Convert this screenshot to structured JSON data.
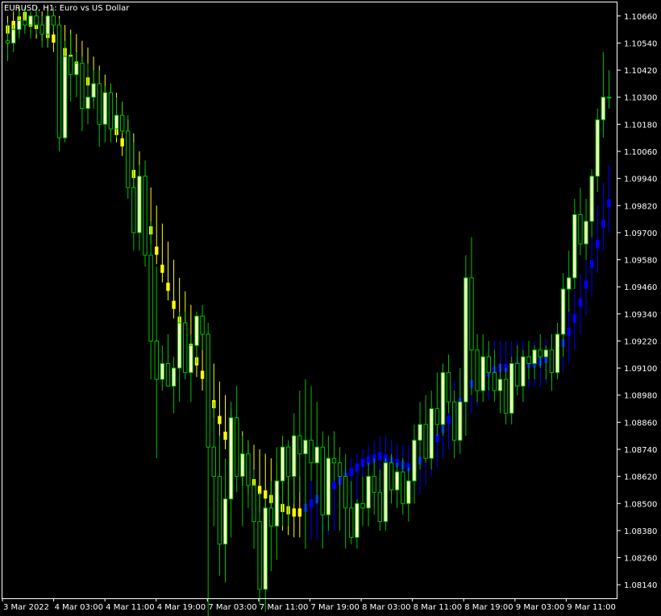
{
  "header": {
    "symbol": "EURUSD",
    "timeframe": "H1",
    "description": "Euro vs US Dollar",
    "title": "EURUSD, H1:  Euro vs US Dollar"
  },
  "colors": {
    "background": "#000000",
    "frame": "#ffffff",
    "wick_green": "#00c000",
    "bull_body": "#ffffc0",
    "yellow": "#ffff00",
    "blue": "#0000ff",
    "text": "#ffffff"
  },
  "chart_data": {
    "type": "candlestick",
    "title": "EURUSD, H1:  Euro vs US Dollar",
    "ylim": [
      1.0808,
      1.1072
    ],
    "y_ticks": [
      "1.10660",
      "1.10540",
      "1.10420",
      "1.10300",
      "1.10180",
      "1.10060",
      "1.09940",
      "1.09820",
      "1.09700",
      "1.09580",
      "1.09460",
      "1.09340",
      "1.09220",
      "1.09100",
      "1.08980",
      "1.08860",
      "1.08740",
      "1.08620",
      "1.08500",
      "1.08380",
      "1.08260",
      "1.08140"
    ],
    "x_ticks": [
      "3 Mar 2022",
      "4 Mar 03:00",
      "4 Mar 11:00",
      "4 Mar 19:00",
      "7 Mar 03:00",
      "7 Mar 11:00",
      "7 Mar 19:00",
      "8 Mar 03:00",
      "8 Mar 11:00",
      "8 Mar 19:00",
      "9 Mar 03:00",
      "9 Mar 11:00"
    ],
    "price_series": [
      [
        1.1055,
        1.1063,
        1.1046,
        1.1054
      ],
      [
        1.1054,
        1.1062,
        1.105,
        1.106
      ],
      [
        1.106,
        1.1068,
        1.1056,
        1.1064
      ],
      [
        1.1064,
        1.107,
        1.1058,
        1.1062
      ],
      [
        1.1062,
        1.1068,
        1.1056,
        1.1066
      ],
      [
        1.1066,
        1.107,
        1.1058,
        1.1062
      ],
      [
        1.1062,
        1.1066,
        1.1052,
        1.1058
      ],
      [
        1.1058,
        1.1068,
        1.1052,
        1.1066
      ],
      [
        1.1066,
        1.107,
        1.1059,
        1.1062
      ],
      [
        1.1062,
        1.1065,
        1.1006,
        1.1012
      ],
      [
        1.1012,
        1.1055,
        1.101,
        1.1048
      ],
      [
        1.1048,
        1.1058,
        1.1028,
        1.104
      ],
      [
        1.104,
        1.105,
        1.103,
        1.1045
      ],
      [
        1.1045,
        1.1048,
        1.1015,
        1.1025
      ],
      [
        1.1025,
        1.1045,
        1.1018,
        1.103
      ],
      [
        1.103,
        1.1042,
        1.1025,
        1.1036
      ],
      [
        1.1036,
        1.1042,
        1.1008,
        1.1018
      ],
      [
        1.1018,
        1.1035,
        1.101,
        1.1032
      ],
      [
        1.1032,
        1.1036,
        1.101,
        1.1016
      ],
      [
        1.1016,
        1.103,
        1.1012,
        1.1022
      ],
      [
        1.1022,
        1.1028,
        1.1014,
        1.1015
      ],
      [
        1.1015,
        1.1022,
        1.0985,
        1.099
      ],
      [
        1.099,
        1.101,
        1.0962,
        1.097
      ],
      [
        1.097,
        1.1,
        1.0962,
        1.0995
      ],
      [
        1.0995,
        1.1002,
        1.0955,
        1.096
      ],
      [
        1.096,
        1.0975,
        1.0905,
        1.0922
      ],
      [
        1.0922,
        1.0955,
        1.087,
        1.0905
      ],
      [
        1.0905,
        1.092,
        1.09,
        1.0912
      ],
      [
        1.0912,
        1.0925,
        1.0902,
        1.0902
      ],
      [
        1.0902,
        1.0915,
        1.089,
        1.091
      ],
      [
        1.091,
        1.0935,
        1.0895,
        1.093
      ],
      [
        1.093,
        1.0935,
        1.0905,
        1.0908
      ],
      [
        1.0908,
        1.0925,
        1.0895,
        1.092
      ],
      [
        1.092,
        1.0935,
        1.0912,
        1.0933
      ],
      [
        1.0933,
        1.0938,
        1.0918,
        1.0925
      ],
      [
        1.0925,
        1.093,
        1.079,
        1.0875
      ],
      [
        1.0875,
        1.0895,
        1.084,
        1.0862
      ],
      [
        1.0862,
        1.088,
        1.0818,
        1.0832
      ],
      [
        1.0832,
        1.087,
        1.0815,
        1.0852
      ],
      [
        1.0852,
        1.0895,
        1.0835,
        1.0888
      ],
      [
        1.0888,
        1.0902,
        1.0855,
        1.0862
      ],
      [
        1.0862,
        1.088,
        1.084,
        1.0872
      ],
      [
        1.0872,
        1.0878,
        1.0848,
        1.0858
      ],
      [
        1.0858,
        1.0865,
        1.083,
        1.0842
      ],
      [
        1.0842,
        1.0855,
        1.0805,
        1.0812
      ],
      [
        1.0812,
        1.0852,
        1.0802,
        1.0848
      ],
      [
        1.0848,
        1.086,
        1.082,
        1.084
      ],
      [
        1.084,
        1.0875,
        1.0825,
        1.086
      ],
      [
        1.086,
        1.088,
        1.084,
        1.0875
      ],
      [
        1.0875,
        1.0878,
        1.084,
        1.0862
      ],
      [
        1.0862,
        1.089,
        1.085,
        1.088
      ],
      [
        1.088,
        1.09,
        1.0855,
        1.0872
      ],
      [
        1.0872,
        1.0905,
        1.083,
        1.0878
      ],
      [
        1.0878,
        1.0902,
        1.086,
        1.0868
      ],
      [
        1.0868,
        1.0895,
        1.085,
        1.0875
      ],
      [
        1.0875,
        1.0882,
        1.083,
        1.0845
      ],
      [
        1.0845,
        1.088,
        1.0838,
        1.087
      ],
      [
        1.087,
        1.0882,
        1.086,
        1.0868
      ],
      [
        1.0868,
        1.0875,
        1.0838,
        1.0862
      ],
      [
        1.0862,
        1.0872,
        1.083,
        1.0848
      ],
      [
        1.0848,
        1.086,
        1.0832,
        1.0835
      ],
      [
        1.0835,
        1.0852,
        1.083,
        1.085
      ],
      [
        1.085,
        1.0862,
        1.084,
        1.0848
      ],
      [
        1.0848,
        1.0868,
        1.084,
        1.0862
      ],
      [
        1.0862,
        1.087,
        1.0845,
        1.0855
      ],
      [
        1.0855,
        1.0865,
        1.0838,
        1.0842
      ],
      [
        1.0842,
        1.087,
        1.0838,
        1.0868
      ],
      [
        1.0868,
        1.0872,
        1.085,
        1.0856
      ],
      [
        1.0856,
        1.0868,
        1.0848,
        1.0864
      ],
      [
        1.0864,
        1.087,
        1.0845,
        1.085
      ],
      [
        1.085,
        1.0866,
        1.0842,
        1.086
      ],
      [
        1.086,
        1.0885,
        1.085,
        1.0878
      ],
      [
        1.0878,
        1.0895,
        1.0865,
        1.0885
      ],
      [
        1.0885,
        1.0898,
        1.0868,
        1.087
      ],
      [
        1.087,
        1.09,
        1.0865,
        1.0892
      ],
      [
        1.0892,
        1.0908,
        1.088,
        1.0885
      ],
      [
        1.0885,
        1.0912,
        1.088,
        1.0908
      ],
      [
        1.0908,
        1.0916,
        1.089,
        1.0895
      ],
      [
        1.0895,
        1.09,
        1.087,
        1.0878
      ],
      [
        1.0878,
        1.091,
        1.0872,
        1.0895
      ],
      [
        1.0895,
        1.096,
        1.088,
        1.095
      ],
      [
        1.095,
        1.0968,
        1.0898,
        1.0918
      ],
      [
        1.0918,
        1.0925,
        1.0895,
        1.09
      ],
      [
        1.09,
        1.0925,
        1.0895,
        1.0915
      ],
      [
        1.0915,
        1.0922,
        1.09,
        1.0908
      ],
      [
        1.0908,
        1.0918,
        1.0895,
        1.09
      ],
      [
        1.09,
        1.0912,
        1.089,
        1.0905
      ],
      [
        1.0905,
        1.091,
        1.0885,
        1.089
      ],
      [
        1.089,
        1.0915,
        1.0885,
        1.0912
      ],
      [
        1.0912,
        1.092,
        1.0898,
        1.0902
      ],
      [
        1.0902,
        1.0918,
        1.0895,
        1.0915
      ],
      [
        1.0915,
        1.0922,
        1.0905,
        1.0912
      ],
      [
        1.0912,
        1.092,
        1.0905,
        1.0918
      ],
      [
        1.0918,
        1.0925,
        1.091,
        1.0915
      ],
      [
        1.0915,
        1.092,
        1.0905,
        1.0918
      ],
      [
        1.0918,
        1.0925,
        1.09,
        1.0908
      ],
      [
        1.0908,
        1.093,
        1.0905,
        1.0925
      ],
      [
        1.0925,
        1.0952,
        1.0915,
        1.0945
      ],
      [
        1.0945,
        1.0962,
        1.0935,
        1.095
      ],
      [
        1.095,
        1.0985,
        1.0945,
        1.0978
      ],
      [
        1.0978,
        1.099,
        1.096,
        1.0965
      ],
      [
        1.0965,
        1.0985,
        1.0958,
        1.0975
      ],
      [
        1.0975,
        1.0998,
        1.0968,
        1.0995
      ],
      [
        1.0995,
        1.1025,
        1.0988,
        1.102
      ],
      [
        1.102,
        1.105,
        1.1012,
        1.103
      ],
      [
        1.103,
        1.1042,
        1.1025,
        1.103
      ]
    ],
    "yellow_series_until_index": 52,
    "blue_series_from_index": 52,
    "indicator_series": [
      [
        1.1052,
        1.1066,
        1.106
      ],
      [
        1.1054,
        1.1068,
        1.1062
      ],
      [
        1.1058,
        1.107,
        1.1064
      ],
      [
        1.106,
        1.107,
        1.1066
      ],
      [
        1.1058,
        1.1068,
        1.1063
      ],
      [
        1.1056,
        1.1068,
        1.1062
      ],
      [
        1.1055,
        1.1068,
        1.106
      ],
      [
        1.1052,
        1.107,
        1.1058
      ],
      [
        1.105,
        1.1068,
        1.1056
      ],
      [
        1.1048,
        1.1066,
        1.1052
      ],
      [
        1.1045,
        1.1062,
        1.105
      ],
      [
        1.1042,
        1.106,
        1.1047
      ],
      [
        1.104,
        1.1058,
        1.1044
      ],
      [
        1.1035,
        1.1055,
        1.104
      ],
      [
        1.1032,
        1.1052,
        1.1037
      ],
      [
        1.1028,
        1.1048,
        1.1033
      ],
      [
        1.1024,
        1.1044,
        1.1029
      ],
      [
        1.102,
        1.104,
        1.1025
      ],
      [
        1.1015,
        1.1036,
        1.102
      ],
      [
        1.101,
        1.1032,
        1.1015
      ],
      [
        1.1004,
        1.1028,
        1.101
      ],
      [
        1.0998,
        1.102,
        1.1003
      ],
      [
        1.099,
        1.1014,
        1.0996
      ],
      [
        1.0982,
        1.1006,
        1.0988
      ],
      [
        1.0974,
        1.0998,
        1.098
      ],
      [
        1.0965,
        1.099,
        1.0971
      ],
      [
        1.0956,
        1.0982,
        1.0962
      ],
      [
        1.0948,
        1.0974,
        1.0954
      ],
      [
        1.094,
        1.0966,
        1.0946
      ],
      [
        1.0932,
        1.0958,
        1.0938
      ],
      [
        1.0925,
        1.095,
        1.0931
      ],
      [
        1.0918,
        1.0944,
        1.0925
      ],
      [
        1.0912,
        1.0938,
        1.0919
      ],
      [
        1.0906,
        1.0932,
        1.0913
      ],
      [
        1.09,
        1.0926,
        1.0907
      ],
      [
        1.0894,
        1.092,
        1.09
      ],
      [
        1.0888,
        1.0912,
        1.0894
      ],
      [
        1.088,
        1.0904,
        1.0887
      ],
      [
        1.0874,
        1.0898,
        1.088
      ],
      [
        1.0868,
        1.0892,
        1.0874
      ],
      [
        1.0862,
        1.0886,
        1.0869
      ],
      [
        1.0858,
        1.0882,
        1.0865
      ],
      [
        1.0854,
        1.0878,
        1.0862
      ],
      [
        1.085,
        1.0876,
        1.0859
      ],
      [
        1.0846,
        1.0874,
        1.0856
      ],
      [
        1.0844,
        1.0872,
        1.0854
      ],
      [
        1.0842,
        1.087,
        1.0852
      ],
      [
        1.084,
        1.0868,
        1.085
      ],
      [
        1.0838,
        1.0866,
        1.0848
      ],
      [
        1.0836,
        1.0864,
        1.0847
      ],
      [
        1.0835,
        1.0862,
        1.0846
      ],
      [
        1.0835,
        1.0862,
        1.0846
      ],
      [
        1.0834,
        1.0862,
        1.0848
      ],
      [
        1.0834,
        1.086,
        1.085
      ],
      [
        1.0834,
        1.086,
        1.0852
      ],
      [
        1.0835,
        1.086,
        1.0854
      ],
      [
        1.0836,
        1.0862,
        1.0856
      ],
      [
        1.0838,
        1.0864,
        1.0858
      ],
      [
        1.084,
        1.0866,
        1.086
      ],
      [
        1.0842,
        1.0868,
        1.0862
      ],
      [
        1.0843,
        1.087,
        1.0864
      ],
      [
        1.0845,
        1.0872,
        1.0866
      ],
      [
        1.0846,
        1.0874,
        1.0868
      ],
      [
        1.0848,
        1.0876,
        1.0869
      ],
      [
        1.0849,
        1.0878,
        1.087
      ],
      [
        1.085,
        1.088,
        1.0871
      ],
      [
        1.085,
        1.088,
        1.087
      ],
      [
        1.085,
        1.0878,
        1.0869
      ],
      [
        1.085,
        1.0876,
        1.0868
      ],
      [
        1.085,
        1.0876,
        1.0867
      ],
      [
        1.085,
        1.0876,
        1.0866
      ],
      [
        1.0852,
        1.0878,
        1.0867
      ],
      [
        1.0854,
        1.088,
        1.0869
      ],
      [
        1.0858,
        1.0884,
        1.0872
      ],
      [
        1.0862,
        1.0888,
        1.0875
      ],
      [
        1.0866,
        1.0892,
        1.0879
      ],
      [
        1.087,
        1.0896,
        1.0883
      ],
      [
        1.0874,
        1.09,
        1.0887
      ],
      [
        1.0878,
        1.0904,
        1.0891
      ],
      [
        1.0882,
        1.0908,
        1.0895
      ],
      [
        1.0886,
        1.0912,
        1.0899
      ],
      [
        1.089,
        1.0916,
        1.0903
      ],
      [
        1.0893,
        1.0918,
        1.0905
      ],
      [
        1.0895,
        1.092,
        1.0907
      ],
      [
        1.0896,
        1.0921,
        1.0908
      ],
      [
        1.0897,
        1.0922,
        1.0909
      ],
      [
        1.0898,
        1.0922,
        1.091
      ],
      [
        1.0899,
        1.0922,
        1.091
      ],
      [
        1.09,
        1.0922,
        1.091
      ],
      [
        1.09,
        1.0922,
        1.0911
      ],
      [
        1.09,
        1.0922,
        1.0911
      ],
      [
        1.0901,
        1.0922,
        1.0912
      ],
      [
        1.0902,
        1.0922,
        1.0912
      ],
      [
        1.0902,
        1.0922,
        1.0913
      ],
      [
        1.0903,
        1.0923,
        1.0914
      ],
      [
        1.0904,
        1.0924,
        1.0915
      ],
      [
        1.0905,
        1.0926,
        1.0917
      ],
      [
        1.0908,
        1.093,
        1.0921
      ],
      [
        1.0912,
        1.0936,
        1.0926
      ],
      [
        1.0918,
        1.0944,
        1.0932
      ],
      [
        1.0925,
        1.0952,
        1.0939
      ],
      [
        1.0933,
        1.0962,
        1.0947
      ],
      [
        1.0942,
        1.0972,
        1.0956
      ],
      [
        1.0952,
        1.0982,
        1.0965
      ],
      [
        1.0962,
        1.0992,
        1.0974
      ],
      [
        1.097,
        1.1,
        1.0983
      ]
    ]
  }
}
